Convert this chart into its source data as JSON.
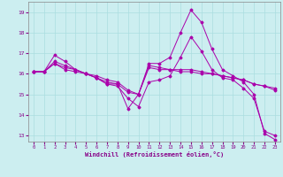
{
  "xlabel": "Windchill (Refroidissement éolien,°C)",
  "xlim": [
    -0.5,
    23.5
  ],
  "ylim": [
    12.7,
    19.5
  ],
  "yticks": [
    13,
    14,
    15,
    16,
    17,
    18,
    19
  ],
  "xticks": [
    0,
    1,
    2,
    3,
    4,
    5,
    6,
    7,
    8,
    9,
    10,
    11,
    12,
    13,
    14,
    15,
    16,
    17,
    18,
    19,
    20,
    21,
    22,
    23
  ],
  "bg_color": "#cceef0",
  "grid_color": "#aadde0",
  "line_color": "#aa00aa",
  "lines": [
    {
      "x": [
        0,
        1,
        2,
        3,
        4,
        5,
        6,
        7,
        8,
        9,
        10,
        11,
        12,
        13,
        14,
        15,
        16,
        17,
        18,
        19,
        20,
        21,
        22,
        23
      ],
      "y": [
        16.1,
        16.1,
        16.9,
        16.6,
        16.2,
        16.0,
        15.8,
        15.5,
        15.5,
        14.3,
        15.0,
        16.5,
        16.5,
        16.8,
        18.0,
        19.1,
        18.5,
        17.2,
        16.2,
        15.9,
        15.6,
        15.0,
        13.1,
        12.8
      ]
    },
    {
      "x": [
        0,
        1,
        2,
        3,
        4,
        5,
        6,
        7,
        8,
        9,
        10,
        11,
        12,
        13,
        14,
        15,
        16,
        17,
        18,
        19,
        20,
        21,
        22,
        23
      ],
      "y": [
        16.1,
        16.1,
        16.6,
        16.4,
        16.2,
        16.0,
        15.8,
        15.6,
        15.5,
        15.1,
        15.0,
        16.4,
        16.3,
        16.2,
        16.2,
        16.2,
        16.1,
        16.0,
        15.9,
        15.8,
        15.7,
        15.5,
        15.4,
        15.3
      ]
    },
    {
      "x": [
        0,
        1,
        2,
        3,
        4,
        5,
        6,
        7,
        8,
        9,
        10,
        11,
        12,
        13,
        14,
        15,
        16,
        17,
        18,
        19,
        20,
        21,
        22,
        23
      ],
      "y": [
        16.1,
        16.1,
        16.5,
        16.3,
        16.2,
        16.0,
        15.9,
        15.7,
        15.6,
        15.2,
        15.0,
        16.3,
        16.2,
        16.2,
        16.1,
        16.1,
        16.0,
        16.0,
        15.9,
        15.8,
        15.7,
        15.5,
        15.4,
        15.2
      ]
    },
    {
      "x": [
        0,
        1,
        2,
        3,
        4,
        5,
        6,
        7,
        8,
        9,
        10,
        11,
        12,
        13,
        14,
        15,
        16,
        17,
        18,
        19,
        20,
        21,
        22,
        23
      ],
      "y": [
        16.1,
        16.1,
        16.5,
        16.2,
        16.1,
        16.0,
        15.8,
        15.5,
        15.4,
        14.8,
        14.4,
        15.6,
        15.7,
        15.9,
        16.8,
        17.8,
        17.1,
        16.2,
        15.8,
        15.7,
        15.3,
        14.8,
        13.2,
        13.0
      ]
    }
  ]
}
